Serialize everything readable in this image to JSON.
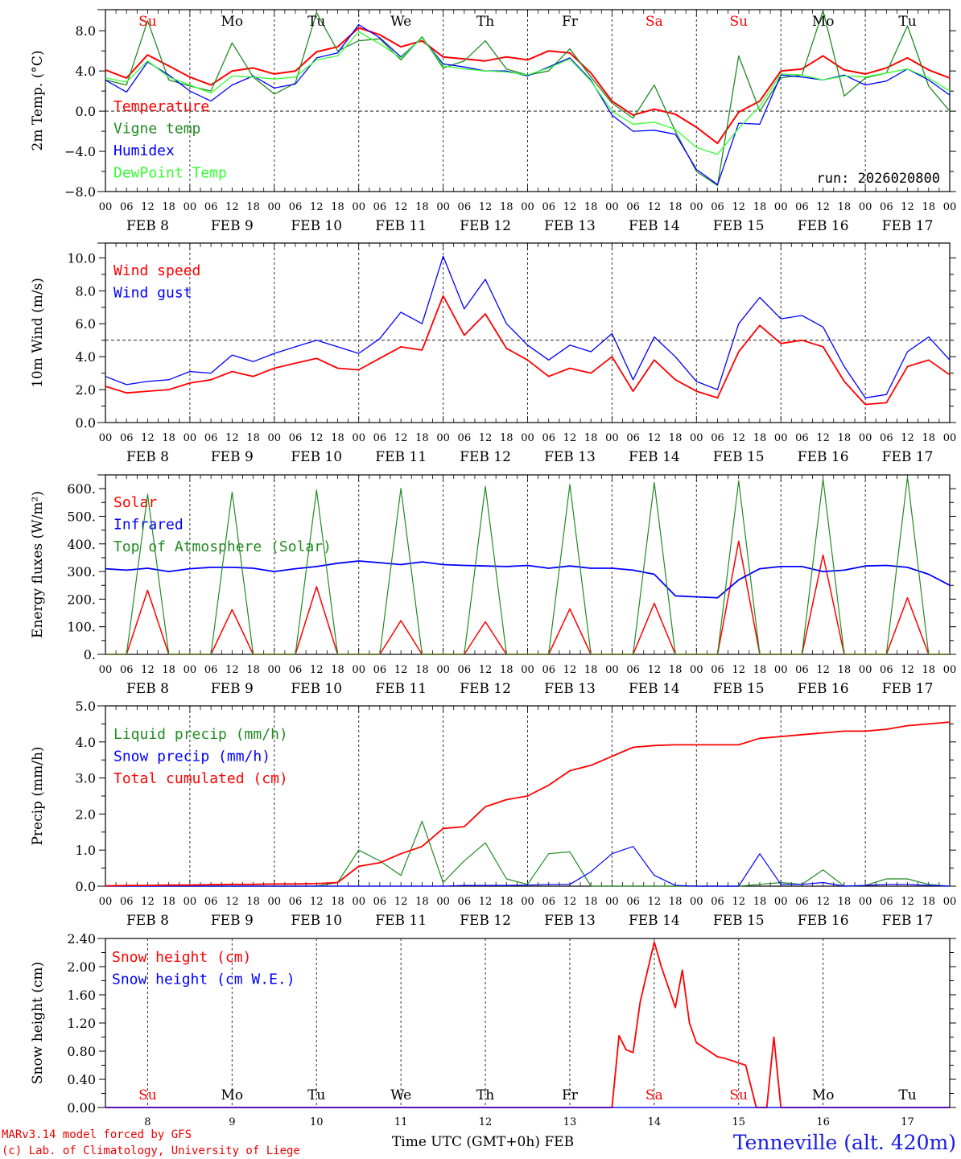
{
  "chart_data": [
    {
      "type": "line",
      "id": "temp",
      "ylabel": "2m Temp. (°C)",
      "ylim": [
        -8.0,
        10.1
      ],
      "yticks": [
        -8.0,
        -4.0,
        0.0,
        4.0,
        8.0
      ],
      "ytick_labels": [
        "−8.0",
        "−4.0",
        "0.0",
        "4.0",
        "8.0"
      ],
      "ref_line": 0.0,
      "annotation": "run: 2026020800",
      "x_hours": [
        0,
        6,
        12,
        18,
        24,
        30,
        36,
        42,
        48,
        54,
        60,
        66,
        72,
        78,
        84,
        90,
        96,
        102,
        108,
        114,
        120,
        126,
        132,
        138,
        144,
        150,
        156,
        162,
        168,
        174,
        180,
        186,
        192,
        198,
        204,
        210,
        216,
        222,
        228,
        234,
        240
      ],
      "series": [
        {
          "name": "Temperature",
          "color": "#ff0000",
          "width": 2,
          "values": [
            4.1,
            3.3,
            5.6,
            4.5,
            3.4,
            2.6,
            4.0,
            4.3,
            3.7,
            4.0,
            5.9,
            6.4,
            8.3,
            7.6,
            6.4,
            7.0,
            5.4,
            5.2,
            5.0,
            5.4,
            5.1,
            6.0,
            5.8,
            3.8,
            1.0,
            -0.4,
            0.2,
            -0.3,
            -1.6,
            -3.2,
            -0.1,
            1.0,
            4.0,
            4.2,
            5.5,
            4.1,
            3.7,
            4.3,
            5.3,
            4.1,
            3.3
          ]
        },
        {
          "name": "Vigne temp",
          "color": "#228b22",
          "width": 1.3,
          "values": [
            3.1,
            2.6,
            9.0,
            3.1,
            2.5,
            2.0,
            6.8,
            3.4,
            1.7,
            2.8,
            9.8,
            6.0,
            7.0,
            7.2,
            5.1,
            7.4,
            4.3,
            5.0,
            7.0,
            4.2,
            3.6,
            4.0,
            6.2,
            3.4,
            0.8,
            -0.7,
            2.6,
            -2.0,
            -6.0,
            -7.4,
            5.5,
            0.0,
            3.3,
            3.6,
            10.0,
            1.5,
            3.3,
            3.8,
            8.5,
            2.5,
            0.0
          ]
        },
        {
          "name": "Humidex",
          "color": "#0000ff",
          "width": 1.3,
          "values": [
            3.1,
            1.9,
            4.9,
            3.6,
            2.0,
            1.0,
            2.6,
            3.5,
            2.3,
            2.7,
            5.3,
            5.8,
            8.6,
            7.3,
            5.4,
            7.3,
            4.7,
            4.4,
            4.0,
            4.0,
            3.5,
            4.4,
            5.3,
            3.1,
            -0.4,
            -2.0,
            -1.9,
            -2.3,
            -5.8,
            -7.3,
            -1.2,
            -1.3,
            3.6,
            3.4,
            3.1,
            3.6,
            2.6,
            3.0,
            4.2,
            3.1,
            1.6
          ]
        },
        {
          "name": "DewPoint Temp",
          "color": "#33ff33",
          "width": 1.3,
          "values": [
            3.3,
            2.9,
            5.0,
            3.4,
            2.6,
            1.8,
            3.5,
            3.4,
            3.2,
            3.4,
            5.1,
            5.5,
            7.9,
            6.7,
            5.3,
            7.3,
            4.5,
            4.2,
            4.0,
            3.9,
            3.6,
            4.3,
            5.2,
            3.0,
            0.0,
            -1.3,
            -1.1,
            -1.8,
            -3.6,
            -4.3,
            -1.7,
            0.5,
            3.7,
            3.6,
            3.1,
            3.5,
            3.4,
            3.8,
            4.2,
            3.3,
            2.0
          ]
        }
      ]
    },
    {
      "type": "line",
      "id": "wind",
      "ylabel": "10m Wind (m/s)",
      "ylim": [
        0.0,
        10.9
      ],
      "yticks": [
        0.0,
        2.0,
        4.0,
        6.0,
        8.0,
        10.0
      ],
      "ytick_labels": [
        "0.0",
        "2.0",
        "4.0",
        "6.0",
        "8.0",
        "10.0"
      ],
      "ref_line": 5.0,
      "x_hours": [
        0,
        6,
        12,
        18,
        24,
        30,
        36,
        42,
        48,
        54,
        60,
        66,
        72,
        78,
        84,
        90,
        96,
        102,
        108,
        114,
        120,
        126,
        132,
        138,
        144,
        150,
        156,
        162,
        168,
        174,
        180,
        186,
        192,
        198,
        204,
        210,
        216,
        222,
        228,
        234,
        240
      ],
      "series": [
        {
          "name": "Wind speed",
          "color": "#ff0000",
          "width": 1.8,
          "values": [
            2.2,
            1.8,
            1.9,
            2.0,
            2.4,
            2.6,
            3.1,
            2.8,
            3.3,
            3.6,
            3.9,
            3.3,
            3.2,
            3.9,
            4.6,
            4.4,
            7.7,
            5.3,
            6.6,
            4.5,
            3.8,
            2.8,
            3.3,
            3.0,
            4.0,
            1.9,
            3.8,
            2.6,
            1.9,
            1.5,
            4.3,
            5.9,
            4.8,
            5.0,
            4.6,
            2.5,
            1.1,
            1.2,
            3.4,
            3.8,
            2.9
          ]
        },
        {
          "name": "Wind gust",
          "color": "#0000ff",
          "width": 1.3,
          "values": [
            2.8,
            2.3,
            2.5,
            2.6,
            3.1,
            3.0,
            4.1,
            3.7,
            4.2,
            4.6,
            5.0,
            4.6,
            4.2,
            5.1,
            6.7,
            6.0,
            10.1,
            6.9,
            8.7,
            6.0,
            4.7,
            3.8,
            4.7,
            4.3,
            5.4,
            2.6,
            5.2,
            4.0,
            2.5,
            2.0,
            6.0,
            7.6,
            6.3,
            6.5,
            5.8,
            3.4,
            1.5,
            1.7,
            4.3,
            5.2,
            3.8
          ]
        }
      ]
    },
    {
      "type": "line",
      "id": "energy",
      "ylabel": "Energy fluxes (W/m²)",
      "ylim": [
        0,
        650
      ],
      "yticks": [
        0,
        100,
        200,
        300,
        400,
        500,
        600
      ],
      "ytick_labels": [
        "0.",
        "100.",
        "200.",
        "300.",
        "400.",
        "500.",
        "600."
      ],
      "x_hours": [
        0,
        6,
        12,
        18,
        24,
        30,
        36,
        42,
        48,
        54,
        60,
        66,
        72,
        78,
        84,
        90,
        96,
        102,
        108,
        114,
        120,
        126,
        132,
        138,
        144,
        150,
        156,
        162,
        168,
        174,
        180,
        186,
        192,
        198,
        204,
        210,
        216,
        222,
        228,
        234,
        240
      ],
      "series": [
        {
          "name": "Solar",
          "color": "#ff0000",
          "width": 1.5,
          "values": [
            0,
            0,
            232,
            0,
            0,
            0,
            162,
            0,
            0,
            0,
            245,
            0,
            0,
            0,
            122,
            0,
            0,
            0,
            118,
            0,
            0,
            0,
            165,
            0,
            0,
            0,
            185,
            0,
            0,
            0,
            410,
            0,
            0,
            0,
            360,
            0,
            0,
            0,
            205,
            0,
            0
          ]
        },
        {
          "name": "Infrared",
          "color": "#0000ff",
          "width": 1.8,
          "values": [
            310,
            305,
            312,
            300,
            310,
            315,
            315,
            312,
            300,
            310,
            318,
            330,
            338,
            332,
            325,
            335,
            325,
            322,
            320,
            318,
            322,
            312,
            320,
            312,
            312,
            305,
            290,
            212,
            208,
            205,
            270,
            310,
            318,
            318,
            300,
            305,
            320,
            322,
            315,
            290,
            250
          ]
        },
        {
          "name": "Top of Atmosphere (Solar)",
          "color": "#228b22",
          "width": 1.2,
          "values": [
            0,
            0,
            580,
            0,
            0,
            0,
            588,
            0,
            0,
            0,
            595,
            0,
            0,
            0,
            601,
            0,
            0,
            0,
            608,
            0,
            0,
            0,
            615,
            0,
            0,
            0,
            622,
            0,
            0,
            0,
            628,
            0,
            0,
            0,
            635,
            0,
            0,
            0,
            642,
            0,
            0
          ]
        }
      ]
    },
    {
      "type": "line",
      "id": "precip",
      "ylabel": "Precip (mm/h)",
      "ylim": [
        0.0,
        5.0
      ],
      "yticks": [
        0.0,
        1.0,
        2.0,
        3.0,
        4.0,
        5.0
      ],
      "ytick_labels": [
        "0.0",
        "1.0",
        "2.0",
        "3.0",
        "4.0",
        "5.0"
      ],
      "x_hours": [
        0,
        6,
        12,
        18,
        24,
        30,
        36,
        42,
        48,
        54,
        60,
        66,
        72,
        78,
        84,
        90,
        96,
        102,
        108,
        114,
        120,
        126,
        132,
        138,
        144,
        150,
        156,
        162,
        168,
        174,
        180,
        186,
        192,
        198,
        204,
        210,
        216,
        222,
        228,
        234,
        240
      ],
      "series": [
        {
          "name": "Liquid precip (mm/h)",
          "color": "#228b22",
          "width": 1.2,
          "values": [
            0,
            0,
            0,
            0,
            0,
            0,
            0,
            0,
            0,
            0,
            0,
            0.1,
            1.0,
            0.7,
            0.3,
            1.8,
            0.1,
            0.7,
            1.2,
            0.2,
            0.05,
            0.9,
            0.95,
            0.0,
            0.0,
            0,
            0,
            0,
            0,
            0,
            0,
            0.05,
            0.1,
            0.05,
            0.45,
            0,
            0.02,
            0.2,
            0.2,
            0.05,
            0
          ]
        },
        {
          "name": "Snow precip (mm/h)",
          "color": "#0000ff",
          "width": 1.2,
          "values": [
            0,
            0,
            0,
            0,
            0,
            0,
            0,
            0,
            0,
            0,
            0,
            0,
            0,
            0,
            0,
            0,
            0,
            0.02,
            0.02,
            0.02,
            0.03,
            0.05,
            0.05,
            0.4,
            0.9,
            1.1,
            0.3,
            0.02,
            0,
            0,
            0,
            0.9,
            0.05,
            0.05,
            0.1,
            0,
            0.02,
            0.05,
            0.05,
            0.02,
            0
          ]
        },
        {
          "name": "Total cumulated (cm)",
          "color": "#ff0000",
          "width": 1.8,
          "values": [
            0.01,
            0.02,
            0.02,
            0.03,
            0.03,
            0.04,
            0.05,
            0.05,
            0.06,
            0.06,
            0.07,
            0.1,
            0.55,
            0.65,
            0.9,
            1.1,
            1.6,
            1.65,
            2.2,
            2.4,
            2.5,
            2.8,
            3.2,
            3.35,
            3.6,
            3.85,
            3.9,
            3.92,
            3.92,
            3.92,
            3.92,
            4.1,
            4.15,
            4.2,
            4.25,
            4.3,
            4.3,
            4.35,
            4.45,
            4.5,
            4.55
          ]
        }
      ]
    },
    {
      "type": "line",
      "id": "snow",
      "ylabel": "Snow height (cm)",
      "ylim": [
        0.0,
        2.4
      ],
      "yticks": [
        0.0,
        0.4,
        0.8,
        1.2,
        1.6,
        2.0,
        2.4
      ],
      "ytick_labels": [
        "0.00",
        "0.40",
        "0.80",
        "1.20",
        "1.60",
        "2.00",
        "2.40"
      ],
      "x_hours": [
        0,
        12,
        36,
        60,
        84,
        108,
        132,
        144,
        146,
        148,
        150,
        152,
        156,
        158,
        162,
        164,
        166,
        168,
        174,
        176,
        182,
        185,
        186,
        188,
        190,
        192,
        216,
        240
      ],
      "series": [
        {
          "name": "Snow height (cm)",
          "color": "#ff0000",
          "width": 1.8,
          "values": [
            0,
            0,
            0,
            0,
            0,
            0,
            0,
            0,
            1.02,
            0.82,
            0.78,
            1.5,
            2.35,
            2.0,
            1.42,
            1.95,
            1.2,
            0.92,
            0.72,
            0.7,
            0.6,
            0.0,
            0.0,
            0.0,
            1.0,
            0.0,
            0,
            0
          ]
        },
        {
          "name": "Snow height (cm W.E.)",
          "color": "#0000ff",
          "width": 1.3,
          "values": [
            0,
            0,
            0,
            0,
            0,
            0,
            0,
            0,
            0,
            0,
            0,
            0,
            0,
            0,
            0,
            0,
            0,
            0,
            0,
            0,
            0,
            0,
            0,
            0,
            0,
            0,
            0,
            0
          ]
        }
      ]
    }
  ],
  "axis": {
    "hour_labels": [
      "00",
      "06",
      "12",
      "18"
    ],
    "end_hour_label": "00",
    "date_labels": [
      "FEB  8",
      "FEB  9",
      "FEB 10",
      "FEB 11",
      "FEB 12",
      "FEB 13",
      "FEB 14",
      "FEB 15",
      "FEB 16",
      "FEB 17"
    ],
    "day_names": [
      "Su",
      "Mo",
      "Tu",
      "We",
      "Th",
      "Fr",
      "Sa",
      "Su",
      "Mo",
      "Tu"
    ],
    "weekend_flags": [
      true,
      false,
      false,
      false,
      false,
      false,
      true,
      true,
      false,
      false
    ],
    "day_numbers": [
      "8",
      "9",
      "10",
      "11",
      "12",
      "13",
      "14",
      "15",
      "16",
      "17"
    ],
    "x_title": "Time UTC (GMT+0h) FEB"
  },
  "colors": {
    "weekend": "#ff0000",
    "weekday": "#000000",
    "station": "#1a1ae6"
  },
  "footer": {
    "credit_line1": "MARv3.14 model forced by GFS",
    "credit_line2": "(c) Lab. of Climatology, University of Liege",
    "station": "Tenneville (alt. 420m)"
  }
}
